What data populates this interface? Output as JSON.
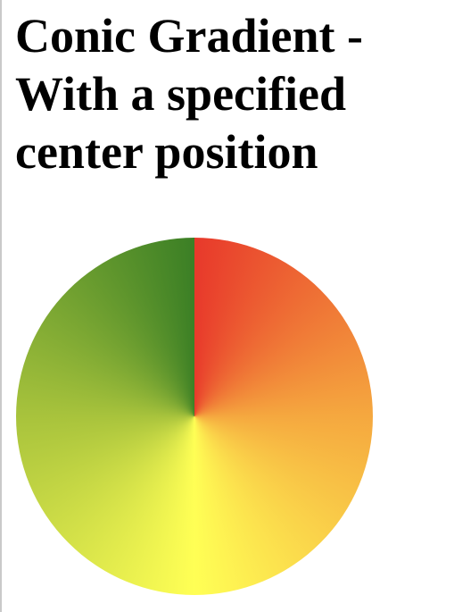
{
  "page": {
    "title": "Conic Gradient - With a specified center position"
  },
  "gradient": {
    "type": "conic",
    "colors": [
      "#e8392b",
      "#f5a83f",
      "#ffff55",
      "#a8c33c",
      "#3b7f25"
    ]
  }
}
